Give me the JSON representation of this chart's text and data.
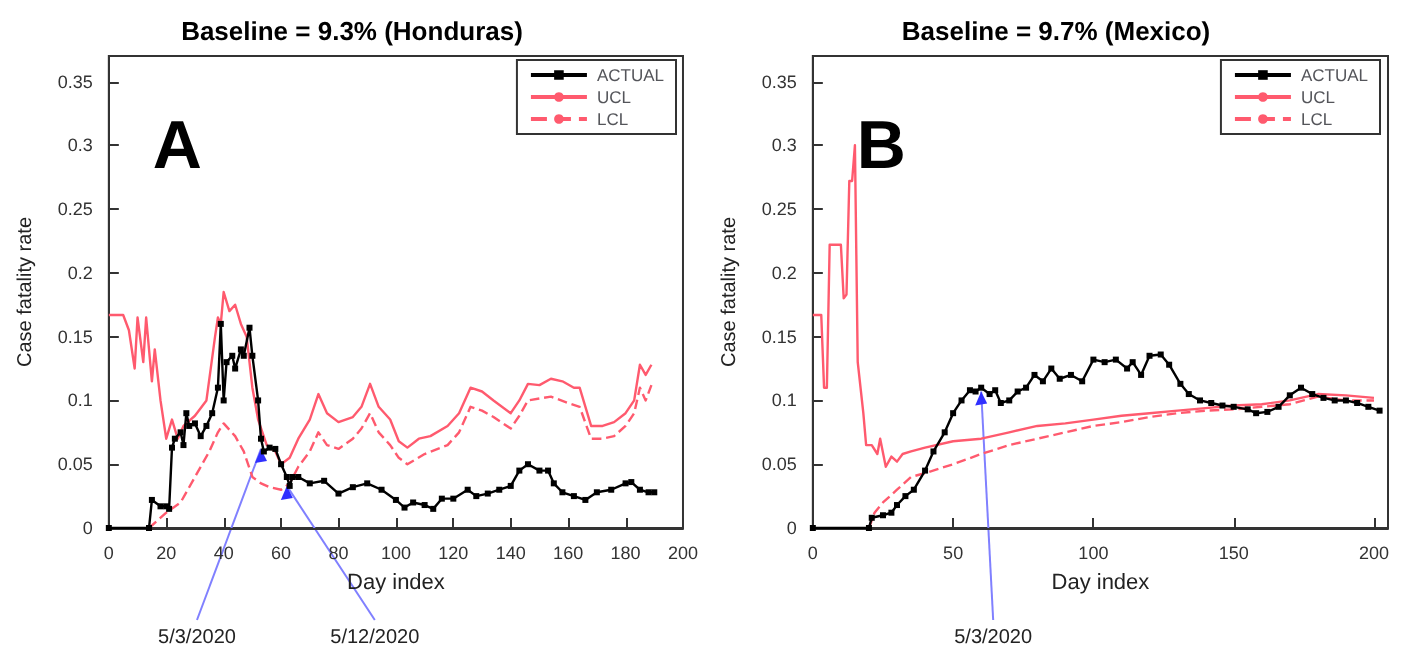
{
  "chart_data": [
    {
      "type": "line",
      "title": "Baseline = 9.3% (Honduras)",
      "xlabel": "Day index",
      "ylabel": "Case fatality rate",
      "legend": "top right",
      "xlim": [
        0,
        200
      ],
      "xticks": [
        0,
        20,
        40,
        60,
        80,
        100,
        120,
        140,
        160,
        180,
        200
      ],
      "ylim": [
        0,
        0.37
      ],
      "yticks": [
        0,
        0.05,
        0.1,
        0.15,
        0.2,
        0.25,
        0.3,
        0.35
      ],
      "annotations": [
        "A",
        {
          "text": "5/3/2020",
          "x": 53,
          "y": 0.062
        },
        {
          "text": "5/12/2020",
          "x": 62,
          "y": 0.033
        }
      ],
      "series": [
        {
          "name": "ACTUAL",
          "color": "#000000",
          "marker": "square",
          "line_style": "solid",
          "x": [
            0,
            14,
            15,
            18,
            20,
            21,
            22,
            23,
            25,
            26,
            27,
            28,
            30,
            32,
            34,
            36,
            38,
            39,
            40,
            41,
            43,
            44,
            46,
            47,
            49,
            50,
            52,
            53,
            54,
            56,
            58,
            60,
            62,
            63,
            64,
            66,
            70,
            75,
            80,
            85,
            90,
            95,
            100,
            103,
            106,
            110,
            113,
            116,
            120,
            125,
            128,
            132,
            136,
            140,
            143,
            146,
            150,
            153,
            155,
            158,
            162,
            166,
            170,
            175,
            180,
            182,
            185,
            188,
            190
          ],
          "values": [
            0,
            0,
            0.022,
            0.017,
            0.017,
            0.015,
            0.063,
            0.07,
            0.075,
            0.065,
            0.09,
            0.08,
            0.082,
            0.072,
            0.08,
            0.09,
            0.11,
            0.16,
            0.1,
            0.13,
            0.135,
            0.125,
            0.14,
            0.135,
            0.157,
            0.135,
            0.1,
            0.07,
            0.06,
            0.063,
            0.062,
            0.05,
            0.04,
            0.033,
            0.04,
            0.04,
            0.035,
            0.037,
            0.027,
            0.032,
            0.035,
            0.03,
            0.022,
            0.016,
            0.02,
            0.018,
            0.015,
            0.023,
            0.023,
            0.03,
            0.025,
            0.027,
            0.03,
            0.033,
            0.045,
            0.05,
            0.045,
            0.045,
            0.035,
            0.028,
            0.025,
            0.022,
            0.028,
            0.03,
            0.035,
            0.036,
            0.03,
            0.028,
            0.028
          ]
        },
        {
          "name": "UCL",
          "color": "#ff5a6e",
          "marker": "none",
          "line_style": "solid",
          "x": [
            0,
            5,
            7,
            9,
            10,
            12,
            13,
            15,
            16,
            18,
            20,
            22,
            24,
            26,
            30,
            34,
            37,
            38,
            39,
            40,
            42,
            44,
            46,
            48,
            50,
            52,
            55,
            58,
            60,
            63,
            66,
            70,
            73,
            76,
            80,
            85,
            88,
            91,
            94,
            98,
            101,
            104,
            108,
            112,
            118,
            122,
            126,
            130,
            134,
            140,
            143,
            146,
            150,
            154,
            158,
            162,
            164,
            168,
            172,
            176,
            180,
            183,
            185,
            187,
            189
          ],
          "values": [
            0.167,
            0.167,
            0.155,
            0.125,
            0.165,
            0.13,
            0.165,
            0.115,
            0.14,
            0.1,
            0.07,
            0.085,
            0.07,
            0.08,
            0.088,
            0.1,
            0.15,
            0.165,
            0.16,
            0.185,
            0.17,
            0.175,
            0.16,
            0.15,
            0.11,
            0.085,
            0.065,
            0.06,
            0.05,
            0.055,
            0.07,
            0.085,
            0.105,
            0.09,
            0.083,
            0.087,
            0.095,
            0.113,
            0.095,
            0.085,
            0.068,
            0.063,
            0.07,
            0.072,
            0.08,
            0.09,
            0.11,
            0.107,
            0.1,
            0.09,
            0.1,
            0.113,
            0.112,
            0.117,
            0.115,
            0.11,
            0.11,
            0.08,
            0.08,
            0.083,
            0.09,
            0.1,
            0.128,
            0.12,
            0.128
          ]
        },
        {
          "name": "LCL",
          "color": "#ff5a6e",
          "marker": "none",
          "line_style": "dashed",
          "x": [
            14,
            20,
            25,
            30,
            35,
            38,
            40,
            42,
            44,
            47,
            50,
            53,
            56,
            60,
            63,
            66,
            70,
            73,
            76,
            80,
            85,
            88,
            91,
            94,
            98,
            101,
            104,
            110,
            118,
            122,
            126,
            130,
            134,
            140,
            143,
            146,
            154,
            160,
            164,
            168,
            172,
            176,
            180,
            183,
            185,
            187,
            189
          ],
          "values": [
            0,
            0.012,
            0.02,
            0.04,
            0.06,
            0.075,
            0.082,
            0.077,
            0.072,
            0.06,
            0.04,
            0.035,
            0.032,
            0.03,
            0.035,
            0.048,
            0.06,
            0.075,
            0.065,
            0.062,
            0.07,
            0.078,
            0.09,
            0.075,
            0.065,
            0.055,
            0.05,
            0.058,
            0.065,
            0.075,
            0.095,
            0.092,
            0.087,
            0.078,
            0.088,
            0.1,
            0.103,
            0.098,
            0.095,
            0.07,
            0.07,
            0.072,
            0.08,
            0.09,
            0.11,
            0.1,
            0.112
          ]
        }
      ]
    },
    {
      "type": "line",
      "title": "Baseline = 9.7% (Mexico)",
      "xlabel": "Day index",
      "ylabel": "Case fatality rate",
      "legend": "top right",
      "xlim": [
        0,
        205
      ],
      "xticks": [
        0,
        50,
        100,
        150,
        200
      ],
      "ylim": [
        0,
        0.37
      ],
      "yticks": [
        0,
        0.05,
        0.1,
        0.15,
        0.2,
        0.25,
        0.3,
        0.35
      ],
      "annotations": [
        "B",
        {
          "text": "5/3/2020",
          "x": 60,
          "y": 0.107
        }
      ],
      "series": [
        {
          "name": "ACTUAL",
          "color": "#000000",
          "marker": "square",
          "line_style": "solid",
          "x": [
            0,
            20,
            21,
            25,
            28,
            30,
            33,
            36,
            40,
            43,
            47,
            50,
            53,
            56,
            58,
            60,
            63,
            65,
            67,
            70,
            73,
            76,
            79,
            82,
            85,
            88,
            92,
            96,
            100,
            104,
            108,
            112,
            114,
            117,
            120,
            124,
            127,
            131,
            134,
            138,
            142,
            146,
            150,
            155,
            158,
            162,
            166,
            170,
            174,
            178,
            182,
            186,
            190,
            194,
            198,
            202
          ],
          "values": [
            0,
            0,
            0.008,
            0.01,
            0.012,
            0.018,
            0.025,
            0.03,
            0.045,
            0.06,
            0.075,
            0.09,
            0.1,
            0.108,
            0.107,
            0.11,
            0.105,
            0.108,
            0.098,
            0.1,
            0.107,
            0.11,
            0.12,
            0.115,
            0.125,
            0.117,
            0.12,
            0.115,
            0.132,
            0.13,
            0.132,
            0.125,
            0.13,
            0.12,
            0.135,
            0.136,
            0.128,
            0.113,
            0.105,
            0.1,
            0.098,
            0.096,
            0.095,
            0.093,
            0.09,
            0.091,
            0.095,
            0.104,
            0.11,
            0.105,
            0.102,
            0.1,
            0.1,
            0.098,
            0.095,
            0.092
          ]
        },
        {
          "name": "UCL",
          "color": "#ff5a6e",
          "marker": "none",
          "line_style": "solid",
          "x": [
            0,
            3,
            4,
            5,
            6,
            10,
            11,
            12,
            13,
            14,
            15,
            16,
            18,
            19,
            21,
            23,
            24,
            26,
            28,
            30,
            32,
            35,
            40,
            50,
            60,
            70,
            80,
            90,
            100,
            110,
            120,
            130,
            140,
            150,
            160,
            170,
            180,
            190,
            200
          ],
          "values": [
            0.167,
            0.167,
            0.11,
            0.11,
            0.222,
            0.222,
            0.18,
            0.183,
            0.272,
            0.272,
            0.3,
            0.13,
            0.09,
            0.065,
            0.065,
            0.058,
            0.07,
            0.048,
            0.056,
            0.052,
            0.058,
            0.06,
            0.063,
            0.068,
            0.07,
            0.075,
            0.08,
            0.082,
            0.085,
            0.088,
            0.09,
            0.092,
            0.094,
            0.096,
            0.097,
            0.1,
            0.105,
            0.104,
            0.102
          ]
        },
        {
          "name": "LCL",
          "color": "#ff5a6e",
          "marker": "none",
          "line_style": "dashed",
          "x": [
            20,
            22,
            25,
            30,
            35,
            40,
            50,
            60,
            70,
            80,
            90,
            100,
            110,
            120,
            130,
            140,
            150,
            160,
            170,
            180,
            190,
            200
          ],
          "values": [
            0,
            0.012,
            0.02,
            0.03,
            0.04,
            0.043,
            0.05,
            0.058,
            0.065,
            0.07,
            0.075,
            0.08,
            0.083,
            0.087,
            0.09,
            0.092,
            0.093,
            0.095,
            0.097,
            0.103,
            0.1,
            0.1
          ]
        }
      ]
    }
  ]
}
